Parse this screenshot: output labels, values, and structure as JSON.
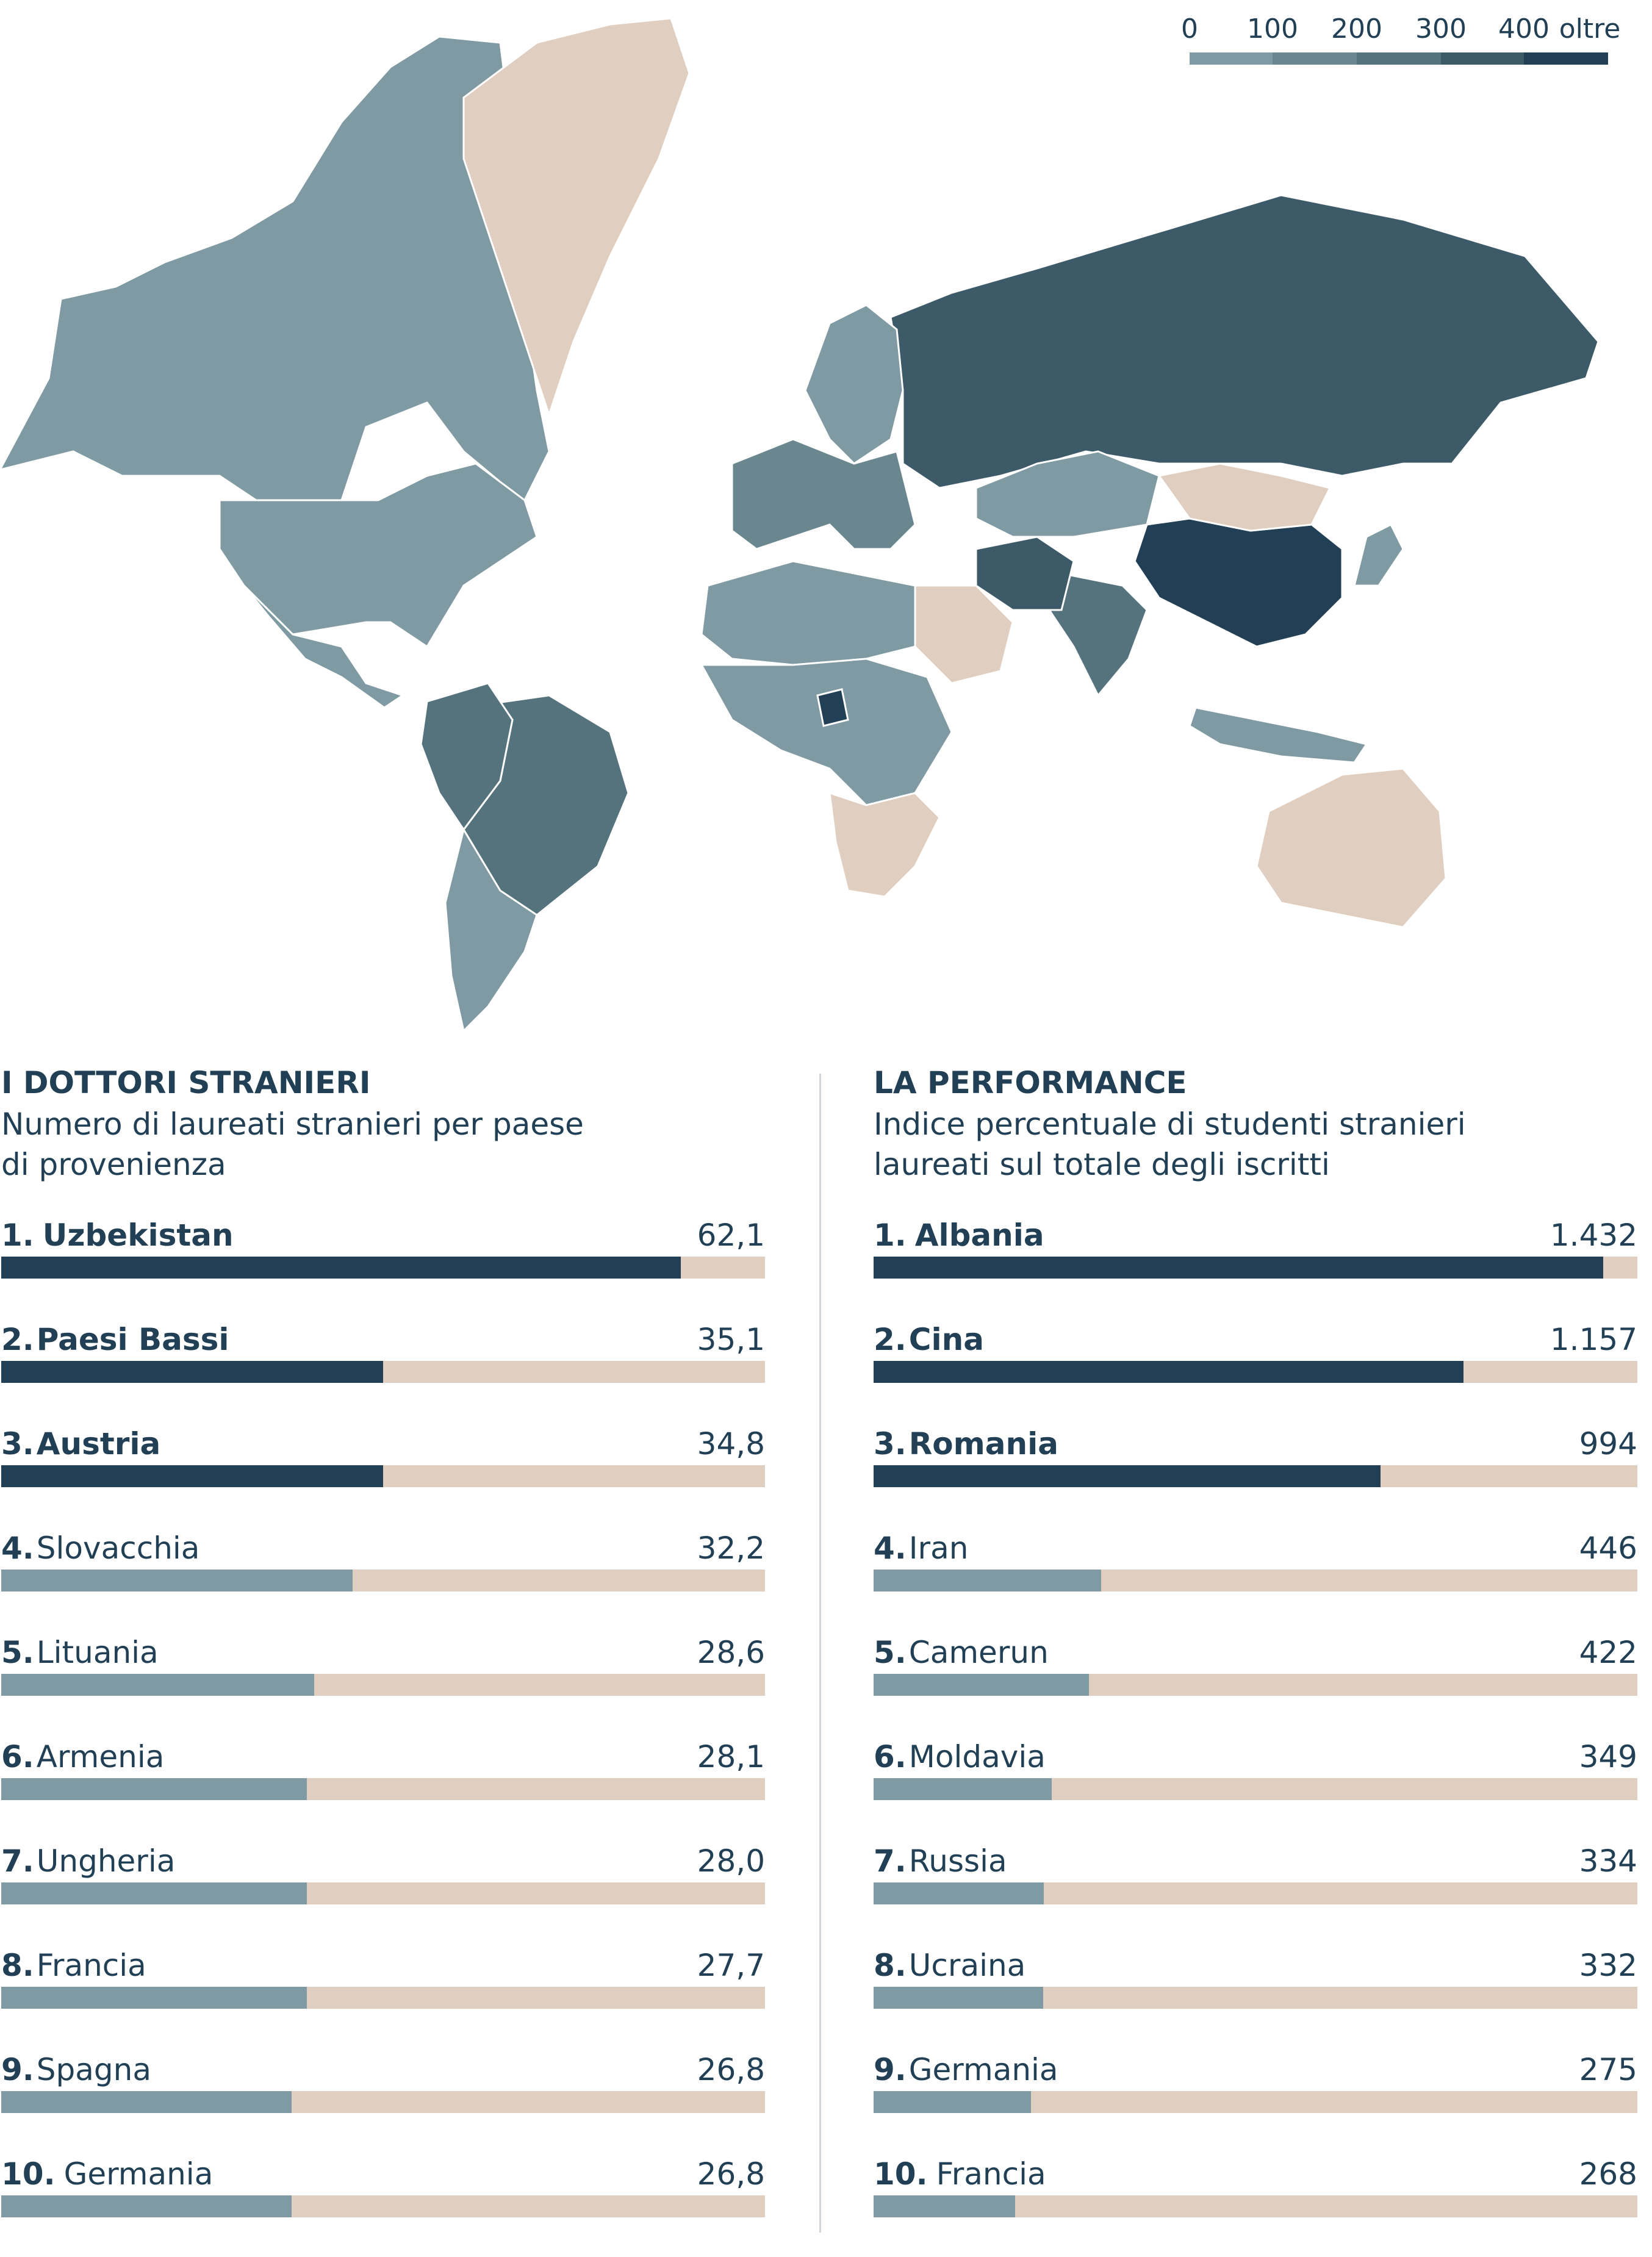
{
  "colors": {
    "neutral": "#e0cfc1",
    "scale": [
      "#7f9aa2",
      "#6a8790",
      "#55737d",
      "#3d5a69",
      "#213f55"
    ]
  },
  "legend": {
    "labels": [
      "0",
      "100",
      "200",
      "300",
      "400",
      "oltre"
    ]
  },
  "map": {
    "regions": [
      {
        "name": "canada",
        "level": 0
      },
      {
        "name": "usa",
        "level": 0
      },
      {
        "name": "mexico",
        "level": 0
      },
      {
        "name": "greenland",
        "level": -1
      },
      {
        "name": "brazil",
        "level": 2
      },
      {
        "name": "colombia-peru",
        "level": 2
      },
      {
        "name": "argentina-chile",
        "level": 0
      },
      {
        "name": "russia",
        "level": 3
      },
      {
        "name": "china",
        "level": 4
      },
      {
        "name": "kazakhstan",
        "level": 0
      },
      {
        "name": "mongolia",
        "level": -1
      },
      {
        "name": "india",
        "level": 2
      },
      {
        "name": "iran",
        "level": 3
      },
      {
        "name": "saudi-arabia",
        "level": -1
      },
      {
        "name": "europe",
        "level": 1
      },
      {
        "name": "scandinavia",
        "level": 0
      },
      {
        "name": "north-africa",
        "level": 0
      },
      {
        "name": "central-africa",
        "level": 0
      },
      {
        "name": "cameroon",
        "level": 4
      },
      {
        "name": "southern-africa",
        "level": -1
      },
      {
        "name": "australia",
        "level": -1
      },
      {
        "name": "indonesia",
        "level": 0
      },
      {
        "name": "japan",
        "level": 0
      }
    ]
  },
  "chart_data": [
    {
      "type": "bar",
      "title": "I DOTTORI STRANIERI",
      "subtitle": "Numero di laureati stranieri per paese\ndi provenienza",
      "categories": [
        "Uzbekistan",
        "Paesi Bassi",
        "Austria",
        "Slovacchia",
        "Lituania",
        "Armenia",
        "Ungheria",
        "Francia",
        "Spagna",
        "Germania"
      ],
      "ranks": [
        "1.",
        "2.",
        "3.",
        "4.",
        "5.",
        "6.",
        "7.",
        "8.",
        "9.",
        "10."
      ],
      "values": [
        62.1,
        35.1,
        34.8,
        32.2,
        28.6,
        28.1,
        28.0,
        27.7,
        26.8,
        26.8
      ],
      "value_labels": [
        "62,1",
        "35,1",
        "34,8",
        "32,2",
        "28,6",
        "28,1",
        "28,0",
        "27,7",
        "26,8",
        "26,8"
      ],
      "fill_fractions": [
        0.89,
        0.5,
        0.5,
        0.46,
        0.41,
        0.4,
        0.4,
        0.4,
        0.38,
        0.38
      ],
      "bar_colors": [
        "#213f55",
        "#213f55",
        "#213f55",
        "#7f9aa2",
        "#7f9aa2",
        "#7f9aa2",
        "#7f9aa2",
        "#7f9aa2",
        "#7f9aa2",
        "#7f9aa2"
      ]
    },
    {
      "type": "bar",
      "title": "LA PERFORMANCE",
      "subtitle": "Indice percentuale di studenti stranieri\nlaureati  sul totale degli iscritti",
      "categories": [
        "Albania",
        "Cina",
        "Romania",
        "Iran",
        "Camerun",
        "Moldavia",
        "Russia",
        "Ucraina",
        "Germania",
        "Francia"
      ],
      "ranks": [
        "1.",
        "2.",
        "3.",
        "4.",
        "5.",
        "6.",
        "7.",
        "8.",
        "9.",
        "10."
      ],
      "values": [
        1432,
        1157,
        994,
        446,
        422,
        349,
        334,
        332,
        275,
        268
      ],
      "value_labels": [
        "1.432",
        "1.157",
        "994",
        "446",
        "422",
        "349",
        "334",
        "332",
        "275",
        "268"
      ],
      "fill_fractions": [
        0.955,
        0.772,
        0.664,
        0.298,
        0.282,
        0.233,
        0.223,
        0.222,
        0.206,
        0.185
      ],
      "bar_colors": [
        "#213f55",
        "#213f55",
        "#213f55",
        "#7f9aa2",
        "#7f9aa2",
        "#7f9aa2",
        "#7f9aa2",
        "#7f9aa2",
        "#7f9aa2",
        "#7f9aa2"
      ]
    }
  ]
}
